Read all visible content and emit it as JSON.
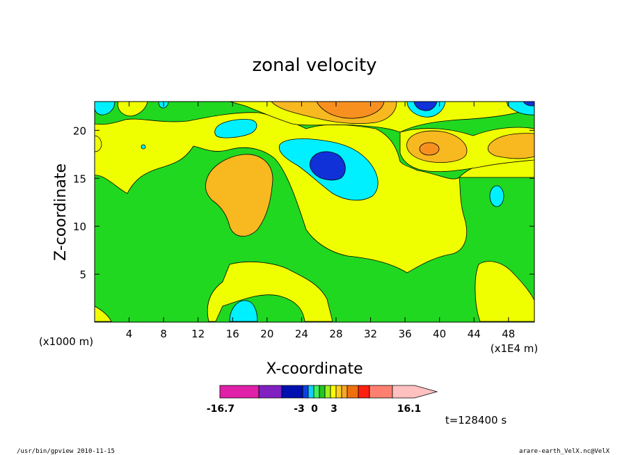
{
  "chart_data": {
    "type": "heatmap",
    "title": "zonal velocity",
    "xlabel": "X-coordinate",
    "ylabel": "Z-coordinate",
    "x_unit": "(x1E4 m)",
    "y_unit": "(x1000 m)",
    "x_ticks": [
      "4",
      "8",
      "12",
      "16",
      "20",
      "24",
      "28",
      "32",
      "36",
      "40",
      "44",
      "48"
    ],
    "y_ticks": [
      "5",
      "10",
      "15",
      "20"
    ],
    "xlim": [
      0,
      51
    ],
    "ylim": [
      0,
      23
    ],
    "colorbar": {
      "min_label": "-16.7",
      "max_label": "16.1",
      "tick_labels": [
        "-3",
        "0",
        "3"
      ],
      "colors": [
        "#e020a8",
        "#8020c0",
        "#0010b0",
        "#1040e0",
        "#10d0ff",
        "#40f060",
        "#20c820",
        "#a0f020",
        "#f8ff00",
        "#ffd020",
        "#f8a820",
        "#f07010",
        "#ff2010",
        "#ff8070",
        "#ffc0c0"
      ]
    },
    "time_label": "t=128400 s",
    "colors": {
      "green": "#20d820",
      "yellow": "#f0ff00",
      "light_orange": "#f8b820",
      "orange": "#f89020",
      "cyan": "#00f0ff",
      "blue": "#1030d8",
      "light_blue": "#10c8ff"
    }
  },
  "footer": {
    "left": "/usr/bin/gpview   2010-11-15",
    "right": "arare-earth_VelX.nc@VelX"
  }
}
